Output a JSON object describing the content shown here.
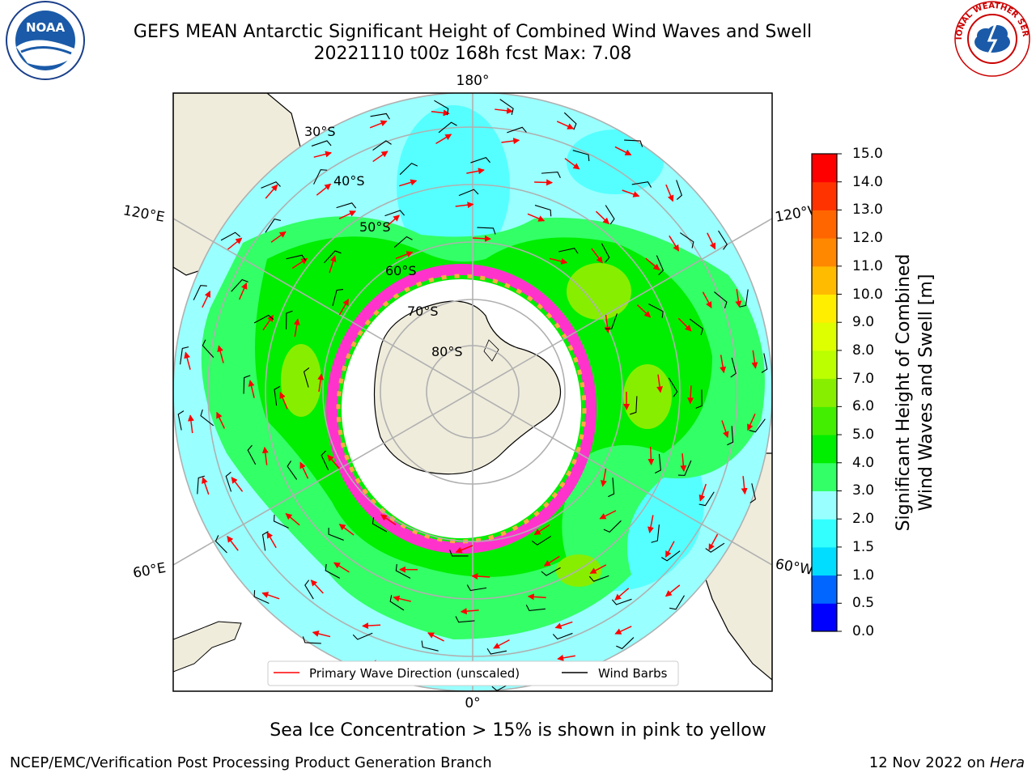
{
  "title": {
    "line1": "GEFS MEAN Antarctic Significant Height of Combined Wind Waves and Swell",
    "line2": "20221110 t00z 168h fcst   Max: 7.08"
  },
  "logos": {
    "left": "NOAA",
    "right_text": "NATIONAL WEATHER SERVICE"
  },
  "map": {
    "lon_labels": {
      "top": "180°",
      "bottom": "0°",
      "left_upper": "120°E",
      "left_lower": "60°E",
      "right_upper": "120°W",
      "right_lower": "60°W"
    },
    "lat_labels": [
      "30°S",
      "40°S",
      "50°S",
      "60°S",
      "70°S",
      "80°S"
    ],
    "legend": {
      "wave_direction": "Primary Wave Direction (unscaled)",
      "wind_barbs": "Wind Barbs"
    },
    "colors": {
      "ocean_low": "#99ffff",
      "ocean_mid": "#33ff66",
      "ocean_high": "#00ff00",
      "land": "#efecdc",
      "ice": "#ffffff",
      "grid": "#b0b0b0",
      "arrow": "#ff0000"
    }
  },
  "colorbar": {
    "label_line1": "Significant Height of Combined",
    "label_line2": "Wind Waves and Swell [m]",
    "ticks": [
      "0.0",
      "0.5",
      "1.0",
      "1.5",
      "2.0",
      "3.0",
      "4.0",
      "5.0",
      "6.0",
      "7.0",
      "8.0",
      "9.0",
      "10.0",
      "11.0",
      "12.0",
      "13.0",
      "14.0",
      "15.0"
    ],
    "colors": [
      "#0000ff",
      "#0066ff",
      "#00ddff",
      "#33ffff",
      "#99ffff",
      "#33ff66",
      "#00ee00",
      "#44ee00",
      "#88ee00",
      "#bbff00",
      "#ddff00",
      "#ffee00",
      "#ffbb00",
      "#ff8800",
      "#ff6600",
      "#ff3300",
      "#ff0000"
    ]
  },
  "note": "Sea Ice Concentration > 15% is shown in pink to yellow",
  "footer": {
    "left": "NCEP/EMC/Verification Post Processing Product Generation Branch",
    "right_date": "12 Nov 2022 on ",
    "right_host": "Hera"
  }
}
